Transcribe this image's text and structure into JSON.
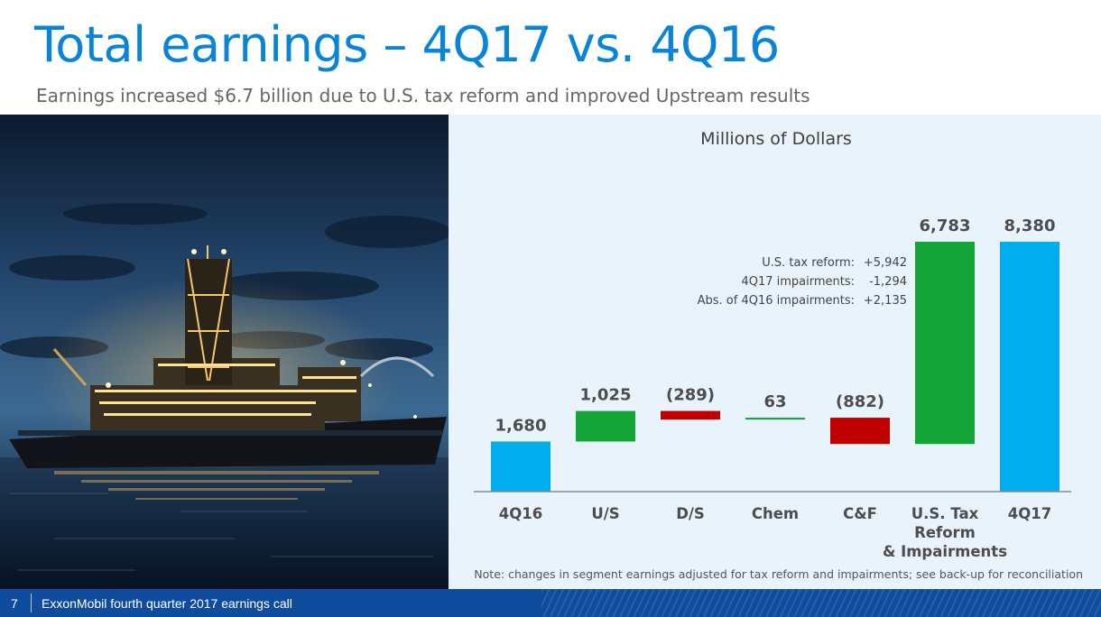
{
  "header": {
    "title": "Total earnings – 4Q17 vs. 4Q16",
    "subtitle": "Earnings increased $6.7 billion due to U.S. tax reform and improved Upstream results"
  },
  "footer": {
    "page_number": "7",
    "text": "ExxonMobil fourth quarter 2017 earnings call"
  },
  "chart_data": {
    "type": "bar",
    "subtype": "waterfall",
    "unit_label": "Millions of Dollars",
    "categories": [
      "4Q16",
      "U/S",
      "D/S",
      "Chem",
      "C&F",
      "U.S. Tax Reform & Impairments",
      "4Q17"
    ],
    "category_lines": [
      [
        "4Q16"
      ],
      [
        "U/S"
      ],
      [
        "D/S"
      ],
      [
        "Chem"
      ],
      [
        "C&F"
      ],
      [
        "U.S. Tax",
        "Reform",
        "& Impairments"
      ],
      [
        "4Q17"
      ]
    ],
    "values": [
      1680,
      1025,
      -289,
      63,
      -882,
      6783,
      8380
    ],
    "value_labels": [
      "1,680",
      "1,025",
      "(289)",
      "63",
      "(882)",
      "6,783",
      "8,380"
    ],
    "bar_kind": [
      "total",
      "delta",
      "delta",
      "delta",
      "delta",
      "delta",
      "total"
    ],
    "ylim": [
      0,
      8380
    ],
    "colors": {
      "total": "#00adef",
      "positive": "#13a538",
      "negative": "#c00000",
      "label": "#4d4d4d",
      "axis": "#8c8c8c"
    },
    "annotation": [
      {
        "label": "U.S. tax reform:",
        "value": "+5,942"
      },
      {
        "label": "4Q17 impairments:",
        "value": "-1,294"
      },
      {
        "label": "Abs. of 4Q16 impairments:",
        "value": "+2,135"
      }
    ],
    "note": "Note: changes in segment earnings adjusted for tax reform and impairments; see back-up for reconciliation",
    "grid": false,
    "legend": "none"
  }
}
